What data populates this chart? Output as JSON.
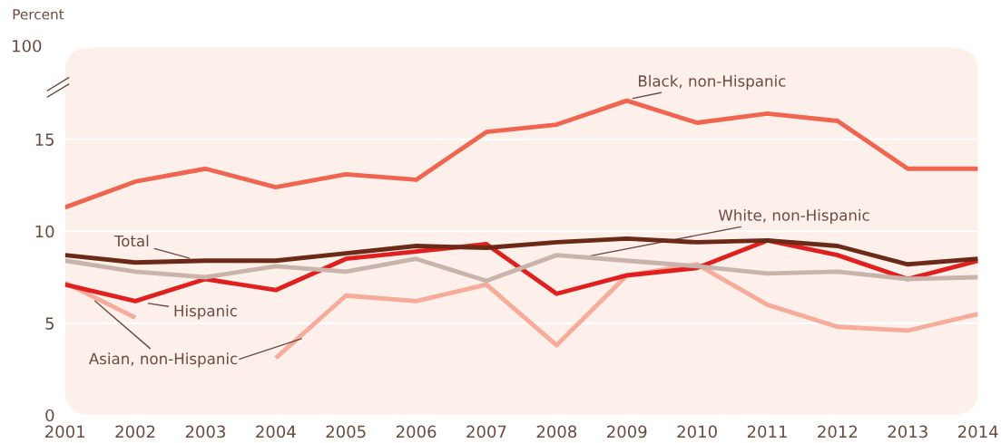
{
  "chart_data": {
    "type": "line",
    "ylabel": "Percent",
    "x": [
      2001,
      2002,
      2003,
      2004,
      2005,
      2006,
      2007,
      2008,
      2009,
      2010,
      2011,
      2012,
      2013,
      2014
    ],
    "xlim": [
      2001,
      2014
    ],
    "xticks": [
      2001,
      2002,
      2003,
      2004,
      2005,
      2006,
      2007,
      2008,
      2009,
      2010,
      2011,
      2012,
      2013,
      2014
    ],
    "ylim": [
      0,
      20
    ],
    "yticks": [
      0,
      5,
      10,
      15
    ],
    "annotations": [
      "100"
    ],
    "grid": "y",
    "marker": "none",
    "line_style": "solid",
    "series": [
      {
        "name": "Black, non-Hispanic",
        "color": "#f0654f",
        "values": [
          11.3,
          12.7,
          13.4,
          12.4,
          13.1,
          12.8,
          15.4,
          15.8,
          17.1,
          15.9,
          16.4,
          16.0,
          13.4,
          13.4
        ]
      },
      {
        "name": "Total",
        "color": "#6b2a17",
        "values": [
          8.7,
          8.3,
          8.4,
          8.4,
          8.8,
          9.2,
          9.1,
          9.4,
          9.6,
          9.4,
          9.5,
          9.2,
          8.2,
          8.5
        ]
      },
      {
        "name": "White, non-Hispanic",
        "color": "#c9b4ab",
        "values": [
          8.4,
          7.8,
          7.5,
          8.1,
          7.8,
          8.5,
          7.3,
          8.7,
          8.4,
          8.1,
          7.7,
          7.8,
          7.4,
          7.5
        ]
      },
      {
        "name": "Hispanic",
        "color": "#e0201f",
        "values": [
          7.1,
          6.2,
          7.4,
          6.8,
          8.5,
          8.9,
          9.3,
          6.6,
          7.6,
          8.0,
          9.5,
          8.7,
          7.4,
          8.4
        ]
      },
      {
        "name": "Asian, non-Hispanic",
        "color": "#f6ab9b",
        "values": [
          7.2,
          5.3,
          null,
          3.1,
          6.5,
          6.2,
          7.1,
          3.8,
          7.6,
          8.2,
          6.0,
          4.8,
          4.6,
          5.5
        ]
      }
    ]
  }
}
